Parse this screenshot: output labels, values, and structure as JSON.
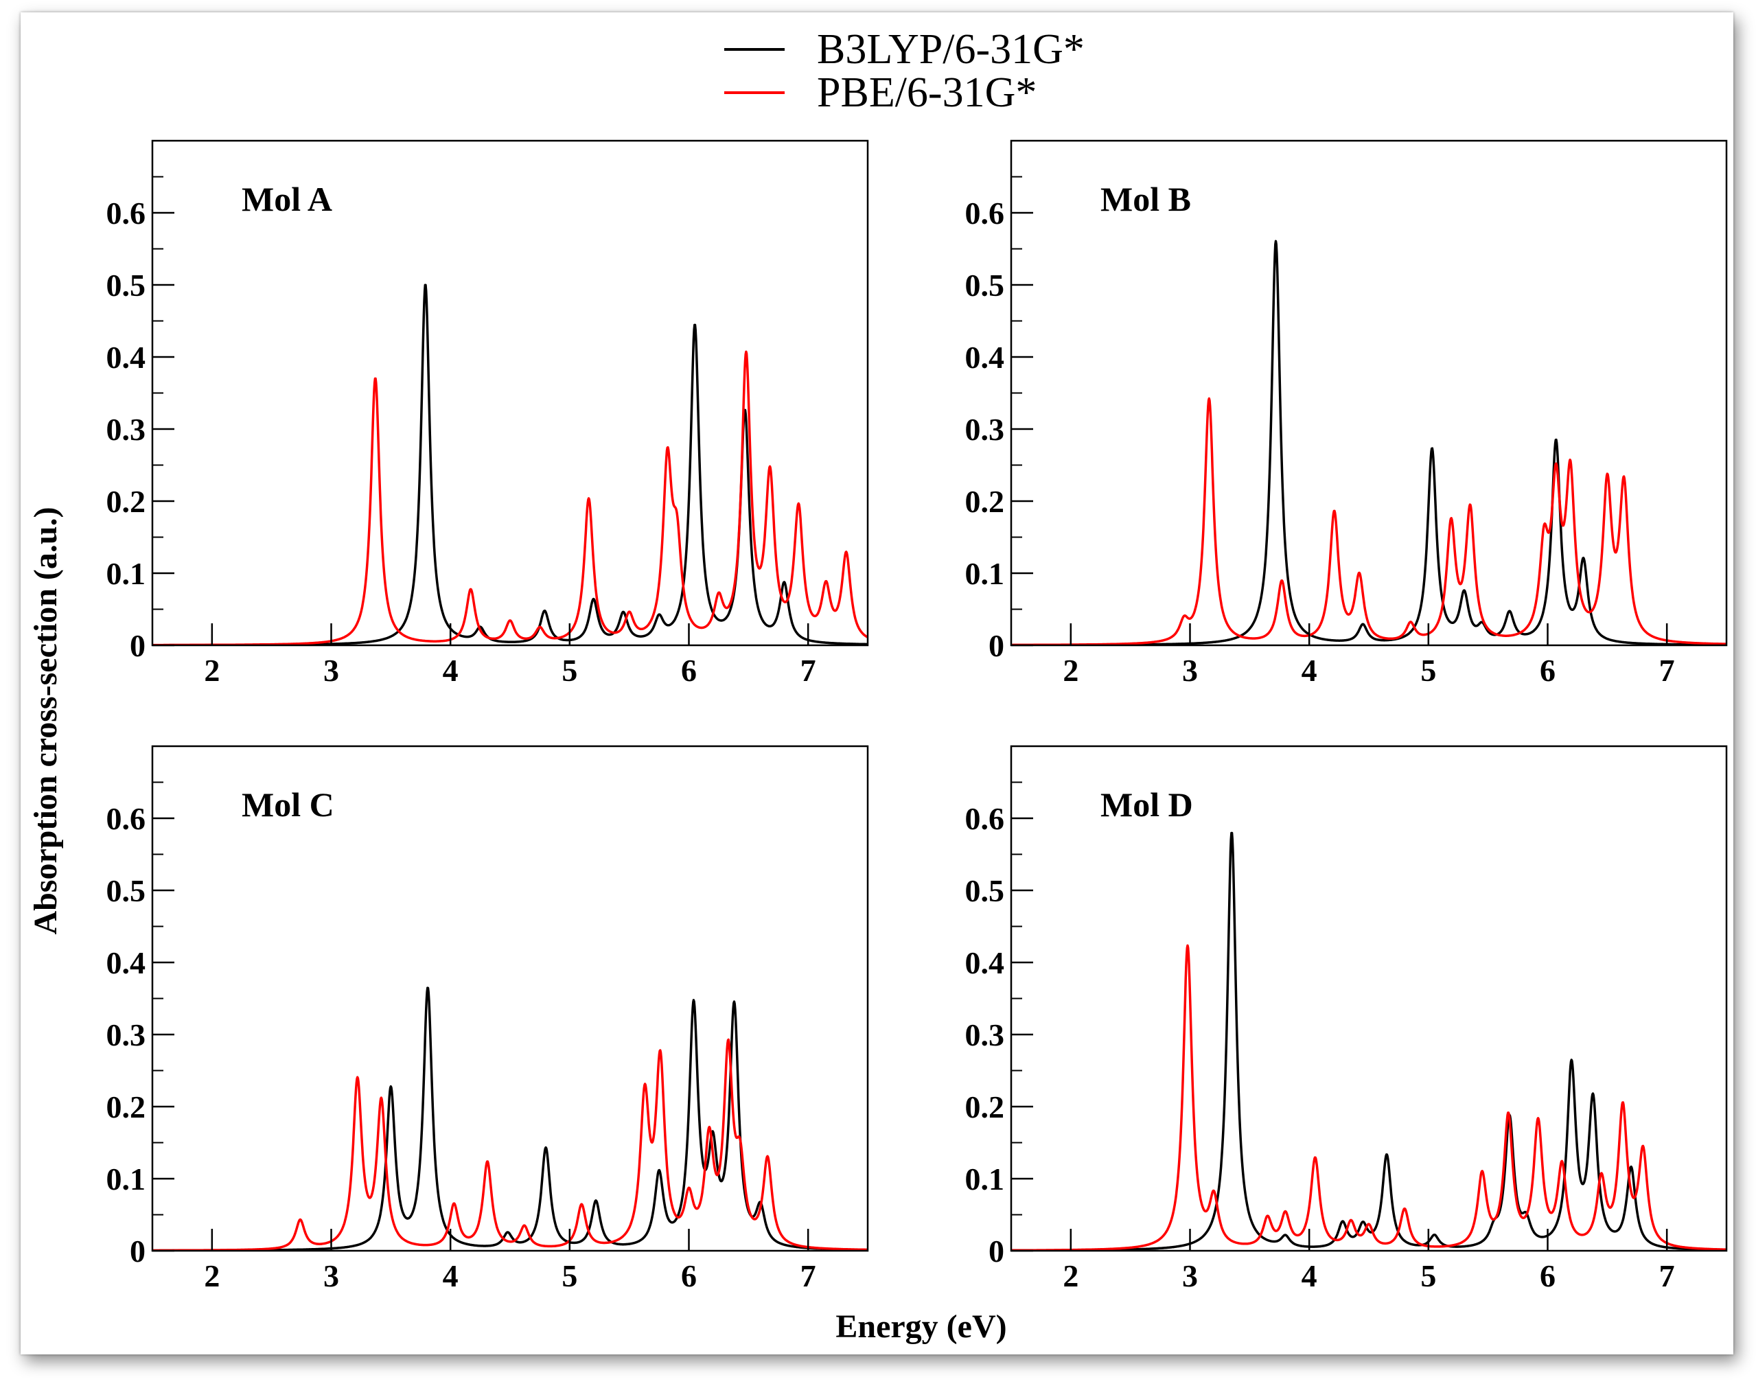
{
  "chart_data": {
    "type": "line",
    "xlabel": "Energy (eV)",
    "ylabel": "Absorption cross-section (a.u.)",
    "xlim": [
      1.5,
      7.5
    ],
    "ylim": [
      0,
      0.7
    ],
    "x_ticks": [
      2,
      3,
      4,
      5,
      6,
      7
    ],
    "y_ticks": [
      0,
      0.1,
      0.2,
      0.3,
      0.4,
      0.5,
      0.6
    ],
    "y_tick_labels": [
      "0",
      "0.1",
      "0.2",
      "0.3",
      "0.4",
      "0.5",
      "0.6"
    ],
    "x_tick_labels": [
      "2",
      "3",
      "4",
      "5",
      "6",
      "7"
    ],
    "legend": [
      {
        "name": "B3LYP/6-31G*",
        "color": "#000000"
      },
      {
        "name": "PBE/6-31G*",
        "color": "#ff0000"
      }
    ],
    "legend_position": "top-center",
    "lineshape": "lorentzian-broadened peaks",
    "panels": [
      {
        "title": "Mol A",
        "series": [
          {
            "name": "B3LYP/6-31G*",
            "color": "#000000",
            "peaks": [
              [
                3.79,
                0.5
              ],
              [
                4.25,
                0.02
              ],
              [
                4.79,
                0.045
              ],
              [
                5.2,
                0.06
              ],
              [
                5.45,
                0.04
              ],
              [
                5.75,
                0.03
              ],
              [
                6.05,
                0.44
              ],
              [
                6.47,
                0.32
              ],
              [
                6.8,
                0.08
              ]
            ]
          },
          {
            "name": "PBE/6-31G*",
            "color": "#ff0000",
            "peaks": [
              [
                3.37,
                0.37
              ],
              [
                4.17,
                0.075
              ],
              [
                4.5,
                0.03
              ],
              [
                4.75,
                0.02
              ],
              [
                5.16,
                0.2
              ],
              [
                5.5,
                0.035
              ],
              [
                5.82,
                0.24
              ],
              [
                5.9,
                0.12
              ],
              [
                6.25,
                0.05
              ],
              [
                6.48,
                0.39
              ],
              [
                6.68,
                0.22
              ],
              [
                6.92,
                0.18
              ],
              [
                7.15,
                0.07
              ],
              [
                7.32,
                0.12
              ]
            ]
          }
        ]
      },
      {
        "title": "Mol B",
        "series": [
          {
            "name": "B3LYP/6-31G*",
            "color": "#000000",
            "peaks": [
              [
                3.72,
                0.56
              ],
              [
                4.45,
                0.025
              ],
              [
                5.03,
                0.27
              ],
              [
                5.3,
                0.065
              ],
              [
                5.45,
                0.02
              ],
              [
                5.68,
                0.04
              ],
              [
                6.07,
                0.28
              ],
              [
                6.3,
                0.11
              ]
            ]
          },
          {
            "name": "PBE/6-31G*",
            "color": "#ff0000",
            "peaks": [
              [
                2.95,
                0.025
              ],
              [
                3.16,
                0.34
              ],
              [
                3.77,
                0.085
              ],
              [
                4.21,
                0.18
              ],
              [
                4.42,
                0.09
              ],
              [
                4.85,
                0.025
              ],
              [
                5.19,
                0.16
              ],
              [
                5.35,
                0.18
              ],
              [
                5.97,
                0.12
              ],
              [
                6.07,
                0.2
              ],
              [
                6.19,
                0.22
              ],
              [
                6.5,
                0.21
              ],
              [
                6.64,
                0.21
              ]
            ]
          }
        ]
      },
      {
        "title": "Mol C",
        "series": [
          {
            "name": "B3LYP/6-31G*",
            "color": "#000000",
            "peaks": [
              [
                3.5,
                0.22
              ],
              [
                3.81,
                0.36
              ],
              [
                4.48,
                0.02
              ],
              [
                4.8,
                0.14
              ],
              [
                5.22,
                0.065
              ],
              [
                5.75,
                0.1
              ],
              [
                6.04,
                0.33
              ],
              [
                6.2,
                0.12
              ],
              [
                6.38,
                0.33
              ],
              [
                6.6,
                0.05
              ]
            ]
          },
          {
            "name": "PBE/6-31G*",
            "color": "#ff0000",
            "peaks": [
              [
                2.74,
                0.04
              ],
              [
                3.22,
                0.23
              ],
              [
                3.42,
                0.2
              ],
              [
                4.03,
                0.06
              ],
              [
                4.31,
                0.12
              ],
              [
                4.62,
                0.03
              ],
              [
                5.1,
                0.06
              ],
              [
                5.63,
                0.2
              ],
              [
                5.76,
                0.25
              ],
              [
                6.0,
                0.06
              ],
              [
                6.17,
                0.14
              ],
              [
                6.33,
                0.26
              ],
              [
                6.43,
                0.1
              ],
              [
                6.66,
                0.12
              ]
            ]
          }
        ]
      },
      {
        "title": "Mol D",
        "series": [
          {
            "name": "B3LYP/6-31G*",
            "color": "#000000",
            "peaks": [
              [
                3.35,
                0.58
              ],
              [
                3.8,
                0.015
              ],
              [
                4.28,
                0.035
              ],
              [
                4.45,
                0.03
              ],
              [
                4.65,
                0.13
              ],
              [
                5.05,
                0.018
              ],
              [
                5.55,
                0.02
              ],
              [
                5.68,
                0.18
              ],
              [
                5.82,
                0.03
              ],
              [
                6.2,
                0.25
              ],
              [
                6.38,
                0.2
              ],
              [
                6.7,
                0.11
              ]
            ]
          },
          {
            "name": "PBE/6-31G*",
            "color": "#ff0000",
            "peaks": [
              [
                2.98,
                0.42
              ],
              [
                3.2,
                0.065
              ],
              [
                3.65,
                0.04
              ],
              [
                3.8,
                0.045
              ],
              [
                4.05,
                0.125
              ],
              [
                4.35,
                0.035
              ],
              [
                4.5,
                0.03
              ],
              [
                4.8,
                0.055
              ],
              [
                5.45,
                0.1
              ],
              [
                5.67,
                0.18
              ],
              [
                5.92,
                0.17
              ],
              [
                6.12,
                0.11
              ],
              [
                6.45,
                0.09
              ],
              [
                6.63,
                0.19
              ],
              [
                6.8,
                0.13
              ]
            ]
          }
        ]
      }
    ]
  }
}
